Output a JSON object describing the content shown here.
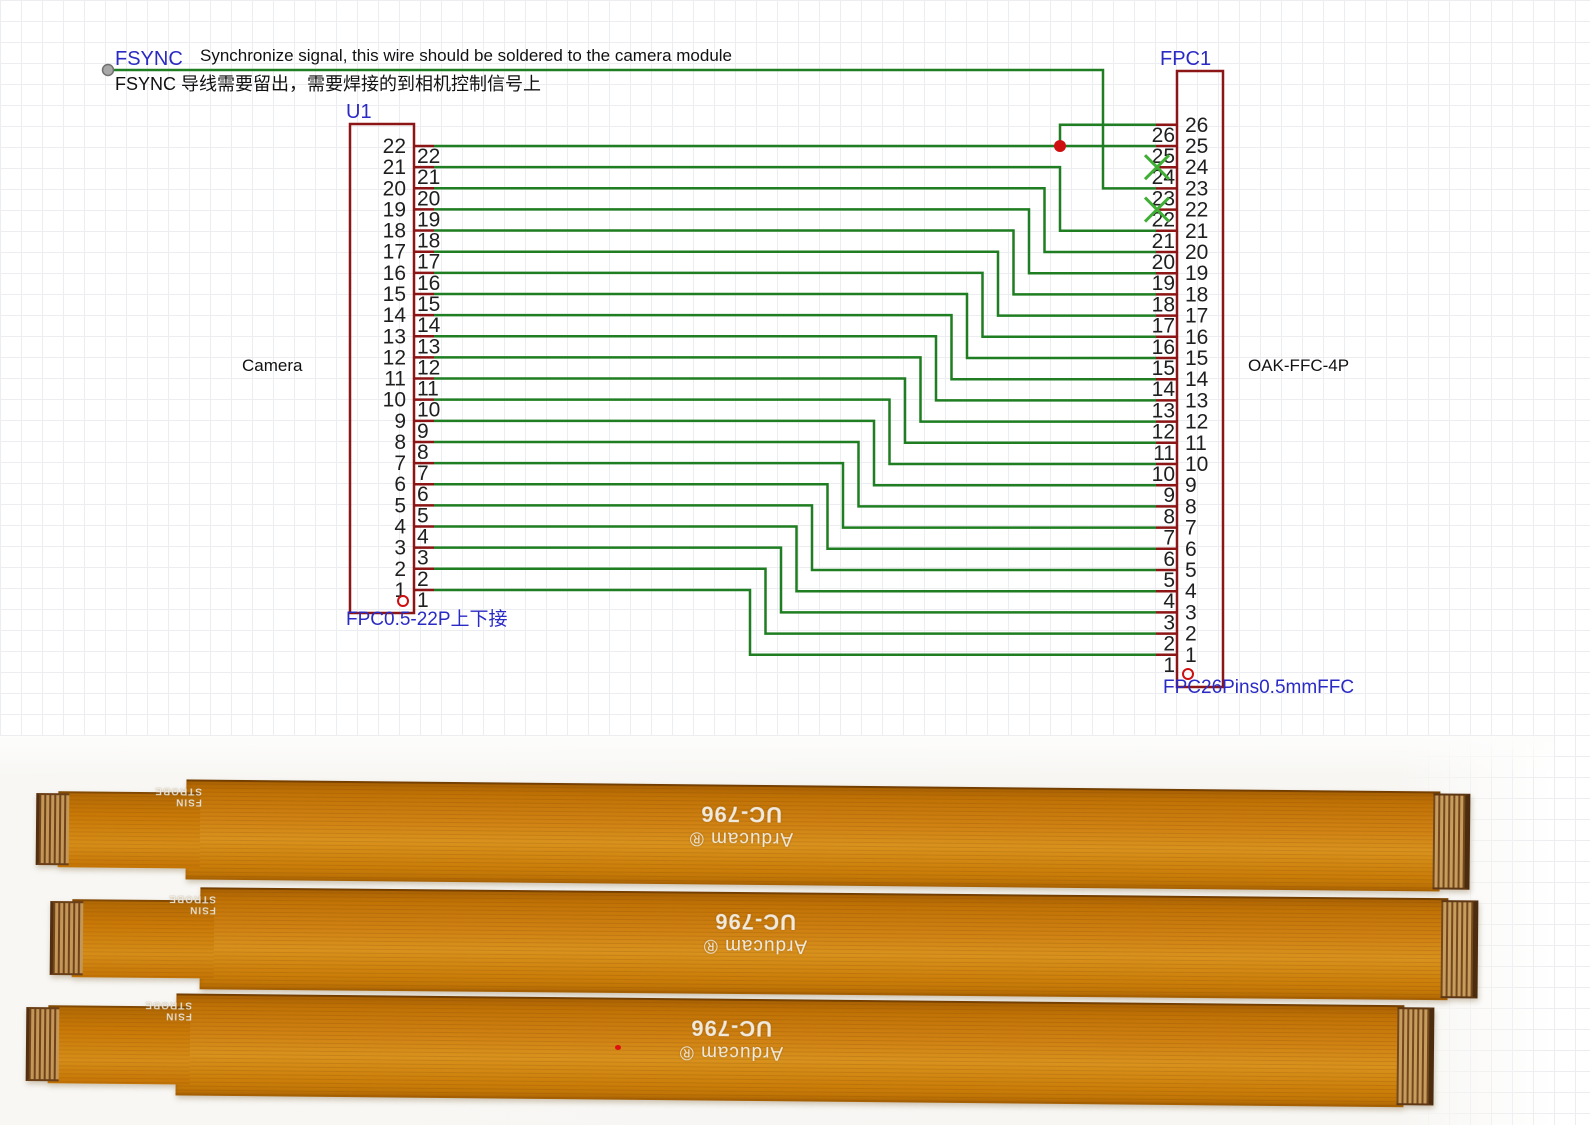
{
  "schematic": {
    "fsync": {
      "label": "FSYNC",
      "note_en": "Synchronize signal, this wire should be soldered to the camera module",
      "note_zh": "FSYNC 导线需要留出，需要焊接的到相机控制信号上",
      "target_fpc1_pin": 23
    },
    "u1": {
      "ref": "U1",
      "part_label": "FPC0.5-22P上下接",
      "side_label": "Camera",
      "pin_count": 22,
      "pins": [
        1,
        2,
        3,
        4,
        5,
        6,
        7,
        8,
        9,
        10,
        11,
        12,
        13,
        14,
        15,
        16,
        17,
        18,
        19,
        20,
        21,
        22
      ]
    },
    "fpc1": {
      "ref": "FPC1",
      "part_label": "FPC26Pins0.5mmFFC",
      "side_label": "OAK-FFC-4P",
      "pin_count": 26,
      "pins": [
        1,
        2,
        3,
        4,
        5,
        6,
        7,
        8,
        9,
        10,
        11,
        12,
        13,
        14,
        15,
        16,
        17,
        18,
        19,
        20,
        21,
        22,
        23,
        24,
        25,
        26
      ],
      "no_connect_pins": [
        22,
        24
      ]
    },
    "connections": [
      [
        1,
        1
      ],
      [
        2,
        2
      ],
      [
        3,
        3
      ],
      [
        4,
        4
      ],
      [
        5,
        5
      ],
      [
        6,
        6
      ],
      [
        7,
        7
      ],
      [
        8,
        8
      ],
      [
        9,
        9
      ],
      [
        10,
        10
      ],
      [
        11,
        11
      ],
      [
        12,
        12
      ],
      [
        13,
        13
      ],
      [
        14,
        14
      ],
      [
        15,
        15
      ],
      [
        16,
        16
      ],
      [
        17,
        17
      ],
      [
        18,
        18
      ],
      [
        19,
        19
      ],
      [
        20,
        20
      ],
      [
        21,
        21
      ],
      [
        22,
        25
      ],
      [
        22,
        26
      ]
    ],
    "colors": {
      "wire": "#1e7e21",
      "connector": "#8c1515",
      "junction": "#cf0f0f",
      "label_blue": "#2a2ac4",
      "no_connect": "#3fae34",
      "fsync_dot": "#a8a8a8"
    }
  },
  "photo": {
    "cables": [
      {
        "model": "UC-796",
        "brand": "Arducam ®",
        "marking_line1": "FSIN",
        "marking_line2": "STROBE"
      },
      {
        "model": "UC-796",
        "brand": "Arducam ®",
        "marking_line1": "FSIN",
        "marking_line2": "STROBE"
      },
      {
        "model": "UC-796",
        "brand": "Arducam ®",
        "marking_line1": "FSIN",
        "marking_line2": "STROBE"
      }
    ]
  }
}
